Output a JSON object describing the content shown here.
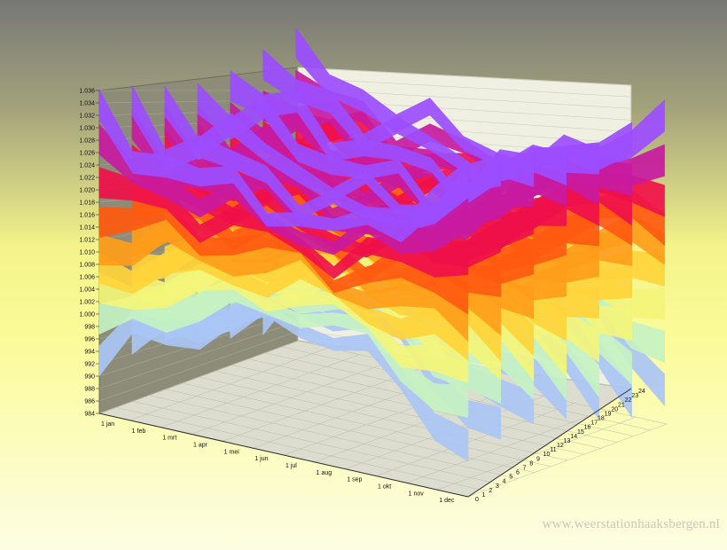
{
  "watermark": "www.weerstationhaaksbergen.nl",
  "chart_data": {
    "type": "3d-surface",
    "title": "",
    "z_ticks": [
      "984",
      "986",
      "988",
      "990",
      "992",
      "994",
      "996",
      "998",
      "1.000",
      "1.002",
      "1.004",
      "1.006",
      "1.008",
      "1.010",
      "1.012",
      "1.014",
      "1.016",
      "1.018",
      "1.020",
      "1.022",
      "1.024",
      "1.026",
      "1.028",
      "1.030",
      "1.032",
      "1.034",
      "1.036"
    ],
    "z_range": [
      984,
      1036
    ],
    "x_ticks": [
      "1 jan",
      "1 feb",
      "1 mrt",
      "1 apr",
      "1 mei",
      "1 jun",
      "1 jul",
      "1 aug",
      "1 sep",
      "1 okt",
      "1 nov",
      "1 dec"
    ],
    "y_ticks": [
      "0",
      "1",
      "2",
      "3",
      "4",
      "5",
      "6",
      "7",
      "8",
      "9",
      "10",
      "11",
      "12",
      "13",
      "14",
      "15",
      "16",
      "17",
      "18",
      "19",
      "20",
      "21",
      "22",
      "23",
      "24"
    ],
    "series": [
      {
        "x": "1 jan",
        "upper": 1034,
        "lower": 990
      },
      {
        "x": "1 feb",
        "upper": 1028,
        "lower": 996
      },
      {
        "x": "1 mrt",
        "upper": 1030,
        "lower": 998
      },
      {
        "x": "1 apr",
        "upper": 1026,
        "lower": 1000
      },
      {
        "x": "1 mei",
        "upper": 1027,
        "lower": 1002
      },
      {
        "x": "1 jun",
        "upper": 1024,
        "lower": 1004
      },
      {
        "x": "1 jul",
        "upper": 1025,
        "lower": 1005
      },
      {
        "x": "1 aug",
        "upper": 1022,
        "lower": 1004
      },
      {
        "x": "1 sep",
        "upper": 1026,
        "lower": 1002
      },
      {
        "x": "1 okt",
        "upper": 1028,
        "lower": 998
      },
      {
        "x": "1 nov",
        "upper": 1033,
        "lower": 994
      },
      {
        "x": "1 dec",
        "upper": 1036,
        "lower": 990
      }
    ],
    "colors": [
      "#a9c6f5",
      "#c6f2c2",
      "#f3f57a",
      "#ffd43a",
      "#ff9d1a",
      "#ff5a10",
      "#f0104a",
      "#c81aa0",
      "#9c4dff"
    ],
    "grid": true
  }
}
